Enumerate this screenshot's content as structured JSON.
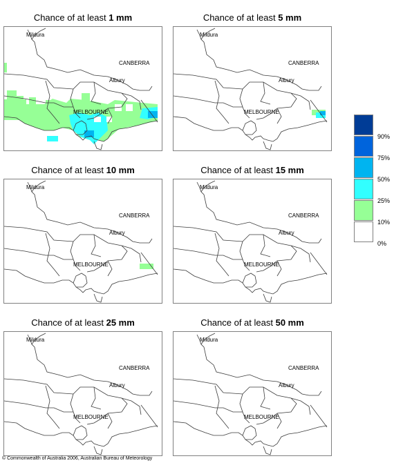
{
  "panels": [
    {
      "prefix": "Chance of at least ",
      "amount": "1 mm"
    },
    {
      "prefix": "Chance of at least ",
      "amount": "5 mm"
    },
    {
      "prefix": "Chance of at least ",
      "amount": "10 mm"
    },
    {
      "prefix": "Chance of at least ",
      "amount": "15 mm"
    },
    {
      "prefix": "Chance of at least ",
      "amount": "25 mm"
    },
    {
      "prefix": "Chance of at least ",
      "amount": "50 mm"
    }
  ],
  "cities": {
    "mildura": "Mildura",
    "canberra": "CANBERRA",
    "albury": "Albury",
    "melbourne": "MELBOURNE"
  },
  "legend": {
    "items": [
      {
        "color": "#003c96",
        "label": "90%"
      },
      {
        "color": "#0064dc",
        "label": "75%"
      },
      {
        "color": "#00b4f0",
        "label": "50%"
      },
      {
        "color": "#32ffff",
        "label": "25%"
      },
      {
        "color": "#96ff96",
        "label": "10%"
      },
      {
        "color": "#ffffff",
        "label": "0%"
      }
    ]
  },
  "copyright": "© Commonwealth of Australia 2006, Australian Bureau of Meteorology"
}
